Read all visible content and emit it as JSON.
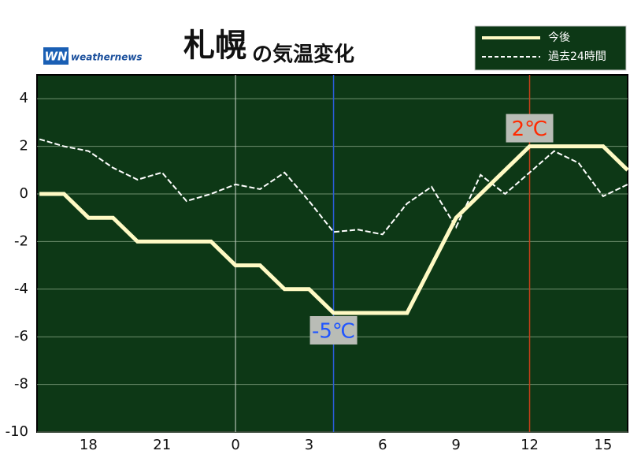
{
  "chart_data": {
    "type": "line",
    "title": "札幌",
    "subtitle": "の気温変化",
    "logo": {
      "mark": "WN",
      "text": "weathernews"
    },
    "x": [
      16,
      17,
      18,
      19,
      20,
      21,
      22,
      23,
      24,
      25,
      26,
      27,
      28,
      29,
      30,
      31,
      32,
      33,
      34,
      35,
      36,
      37,
      38,
      39,
      40
    ],
    "series": [
      {
        "name": "今後",
        "color": "#fffac4",
        "style": "solid",
        "values": [
          0,
          0,
          -1,
          -1,
          -2,
          -2,
          -2,
          -2,
          -3,
          -3,
          -4,
          -4,
          -5,
          -5,
          -5,
          -5,
          -3,
          -1,
          0,
          1,
          2,
          2,
          2,
          2,
          1
        ]
      },
      {
        "name": "過去24時間",
        "color": "#ffffff",
        "style": "dashed",
        "values": [
          2.3,
          2,
          1.8,
          1.1,
          0.6,
          0.9,
          -0.3,
          0,
          0.4,
          0.2,
          0.9,
          -0.3,
          -1.6,
          -1.5,
          -1.7,
          -0.4,
          0.3,
          -1.4,
          0.8,
          0,
          0.9,
          1.8,
          1.3,
          -0.1,
          0.4
        ]
      }
    ],
    "xlim": [
      15.9,
      40
    ],
    "xticks": [
      18,
      21,
      {
        "value": 24,
        "label": "0"
      },
      {
        "value": 27,
        "label": "3"
      },
      {
        "value": 30,
        "label": "6"
      },
      {
        "value": 33,
        "label": "9"
      },
      {
        "value": 36,
        "label": "12"
      },
      {
        "value": 39,
        "label": "15"
      }
    ],
    "x_gridlines": [
      24
    ],
    "ylim": [
      -10,
      5
    ],
    "yticks": [
      4,
      2,
      0,
      -2,
      -4,
      -6,
      -8,
      -10
    ],
    "grid": true,
    "background": "#0d3816",
    "annotations": [
      {
        "x": 28,
        "value": -5,
        "label": "-5℃",
        "color": "#1f55ff",
        "line_color": "#2a5cd8"
      },
      {
        "x": 36,
        "value": 2,
        "label": "2℃",
        "color": "#ff2a00",
        "line_color": "#c8401a"
      }
    ],
    "legend": "upper right"
  }
}
